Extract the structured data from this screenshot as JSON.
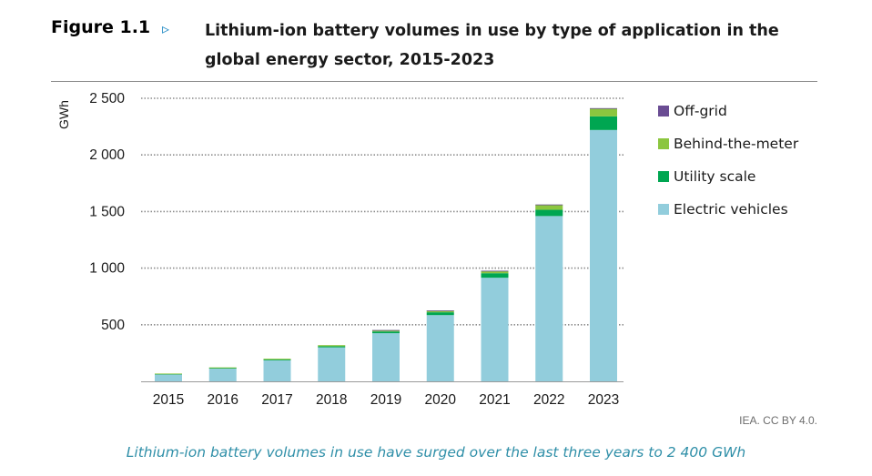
{
  "header": {
    "figure_label": "Figure 1.1",
    "arrow": "▹",
    "title": "Lithium-ion battery volumes in use by type of application in the global energy sector, 2015-2023"
  },
  "colors": {
    "off_grid": "#6a4c93",
    "behind_the_meter": "#8cc63f",
    "utility_scale": "#00a651",
    "electric_vehicles": "#92cddc",
    "caption": "#2f8fa8",
    "arrow": "#2b8fc7"
  },
  "chart_data": {
    "type": "bar",
    "stacked": true,
    "title": "Lithium-ion battery volumes in use by type of application in the global energy sector, 2015-2023",
    "ylabel": "GWh",
    "xlabel": "",
    "ylim": [
      0,
      2500
    ],
    "yticks": [
      500,
      1000,
      1500,
      2000,
      2500
    ],
    "ytick_labels": [
      "500",
      "1 000",
      "1 500",
      "2 000",
      "2 500"
    ],
    "grid": "dotted horizontal",
    "legend_position": "right",
    "categories": [
      "2015",
      "2016",
      "2017",
      "2018",
      "2019",
      "2020",
      "2021",
      "2022",
      "2023"
    ],
    "series": [
      {
        "name": "Electric vehicles",
        "color": "#92cddc",
        "values": [
          65,
          115,
          185,
          300,
          425,
          585,
          915,
          1460,
          2220
        ]
      },
      {
        "name": "Utility scale",
        "color": "#00a651",
        "values": [
          2,
          4,
          7,
          10,
          15,
          25,
          40,
          55,
          120
        ]
      },
      {
        "name": "Behind-the-meter",
        "color": "#8cc63f",
        "values": [
          2,
          4,
          8,
          10,
          12,
          15,
          20,
          45,
          70
        ]
      },
      {
        "name": "Off-grid",
        "color": "#6a4c93",
        "values": [
          0,
          0,
          0,
          0,
          1,
          1,
          2,
          2,
          3
        ]
      }
    ],
    "legend_order": [
      "Off-grid",
      "Behind-the-meter",
      "Utility scale",
      "Electric vehicles"
    ]
  },
  "source": "IEA. CC BY 4.0.",
  "caption": "Lithium-ion battery volumes in use have surged over the last three years to 2 400 GWh"
}
